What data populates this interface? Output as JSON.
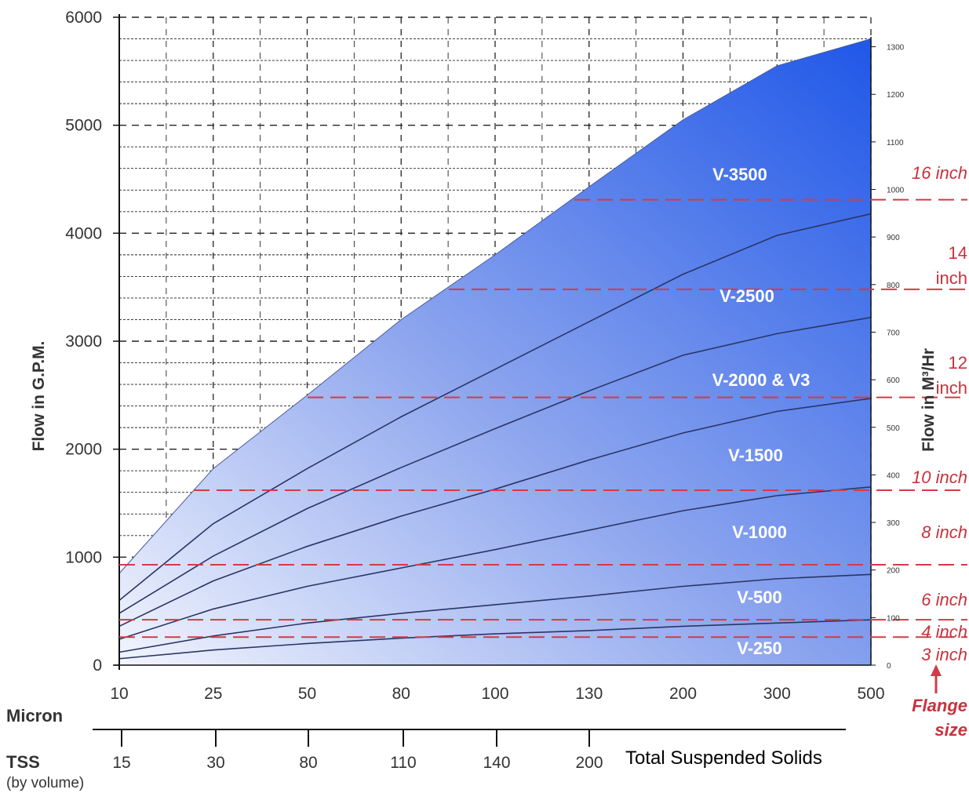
{
  "chart_data": {
    "type": "area",
    "title": "",
    "ylabel": "Flow in G.P.M.",
    "y2label": "Flow in M³/Hr",
    "ylim": [
      0,
      6000
    ],
    "y2lim": [
      0,
      1362
    ],
    "y_ticks": [
      "0",
      "1000",
      "2000",
      "3000",
      "4000",
      "5000",
      "6000"
    ],
    "y2_ticks": [
      "0",
      "100",
      "200",
      "300",
      "400",
      "500",
      "600",
      "700",
      "800",
      "900",
      "1000",
      "1100",
      "1200",
      "1300"
    ],
    "micron_label": "Micron",
    "categories": [
      "10",
      "25",
      "50",
      "80",
      "100",
      "130",
      "200",
      "300",
      "500"
    ],
    "tss_label": "TSS",
    "tss_sublabel": "(by volume)",
    "tss_values": [
      "15",
      "30",
      "80",
      "110",
      "140",
      "200"
    ],
    "tss_caption": "Total Suspended Solids",
    "grid": true,
    "series": [
      {
        "name": "V-250",
        "values": [
          60,
          140,
          200,
          250,
          290,
          320,
          360,
          390,
          420
        ]
      },
      {
        "name": "V-500",
        "values": [
          120,
          270,
          390,
          480,
          560,
          640,
          730,
          800,
          840
        ]
      },
      {
        "name": "V-1000",
        "values": [
          240,
          520,
          730,
          900,
          1070,
          1250,
          1430,
          1570,
          1650
        ]
      },
      {
        "name": "V-1500",
        "values": [
          360,
          780,
          1100,
          1380,
          1630,
          1900,
          2150,
          2350,
          2470
        ]
      },
      {
        "name": "V-2000 & V3",
        "values": [
          480,
          1010,
          1450,
          1830,
          2190,
          2540,
          2870,
          3070,
          3220
        ]
      },
      {
        "name": "V-2500",
        "values": [
          600,
          1310,
          1820,
          2300,
          2740,
          3180,
          3620,
          3980,
          4180
        ]
      },
      {
        "name": "V-3500",
        "values": [
          850,
          1820,
          2500,
          3200,
          3800,
          4430,
          5050,
          5550,
          5800
        ]
      }
    ],
    "flange": {
      "caption": [
        "Flange",
        "size"
      ],
      "lines_gpm": [
        260,
        420,
        930,
        1620,
        2480,
        3480,
        4310
      ],
      "labels": [
        "3 inch",
        "4 inch",
        "6 inch",
        "8 inch",
        "10 inch",
        "12 inch",
        "14 inch",
        "16 inch"
      ],
      "color": "#d43a48"
    },
    "colors": {
      "area_light": "#dde6fa",
      "area_dark": "#1f57e8",
      "curve": "#2a3566"
    }
  }
}
